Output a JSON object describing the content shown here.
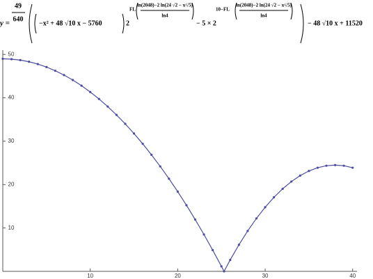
{
  "formula": [
    "y =",
    "49",
    "640",
    "−x² + 48 √10 x − 5760",
    "2",
    "FL",
    "ln(2048)−2 ln(24 √2 − x⁄√5)",
    "ln4",
    "− 5 × 2",
    "10−FL",
    "ln(2048)−2 ln(24 √2 − x⁄√5)",
    "ln4",
    "− 48 √10 x + 11520"
  ],
  "chart_data": {
    "type": "line",
    "series": [
      {
        "color": "#4b4ba3",
        "x": [
          0,
          1,
          2,
          3,
          4,
          5,
          6,
          7,
          8,
          9,
          10,
          11,
          12,
          13,
          14,
          15,
          16,
          17,
          18,
          19,
          20,
          21,
          22,
          23,
          24,
          25,
          25.3,
          26,
          27,
          28,
          29,
          30,
          31,
          32,
          33,
          34,
          35,
          36,
          37,
          38,
          39,
          40
        ],
        "values": [
          49,
          48.92,
          48.69,
          48.31,
          47.78,
          47.09,
          46.24,
          45.25,
          44.1,
          42.8,
          41.34,
          39.74,
          37.98,
          36.06,
          34.0,
          31.77,
          29.4,
          26.87,
          24.19,
          21.36,
          18.38,
          15.24,
          11.94,
          8.5,
          4.9,
          1.15,
          0,
          2.63,
          6.12,
          9.31,
          12.2,
          14.78,
          17.06,
          19.03,
          20.7,
          22.07,
          23.13,
          23.89,
          24.35,
          24.5,
          24.35,
          23.89
        ]
      }
    ],
    "xlim": [
      0,
      40.5
    ],
    "ylim": [
      0,
      51
    ],
    "xticks": [
      10,
      20,
      30,
      40
    ],
    "yticks": [
      10,
      20,
      30,
      40,
      50
    ]
  }
}
